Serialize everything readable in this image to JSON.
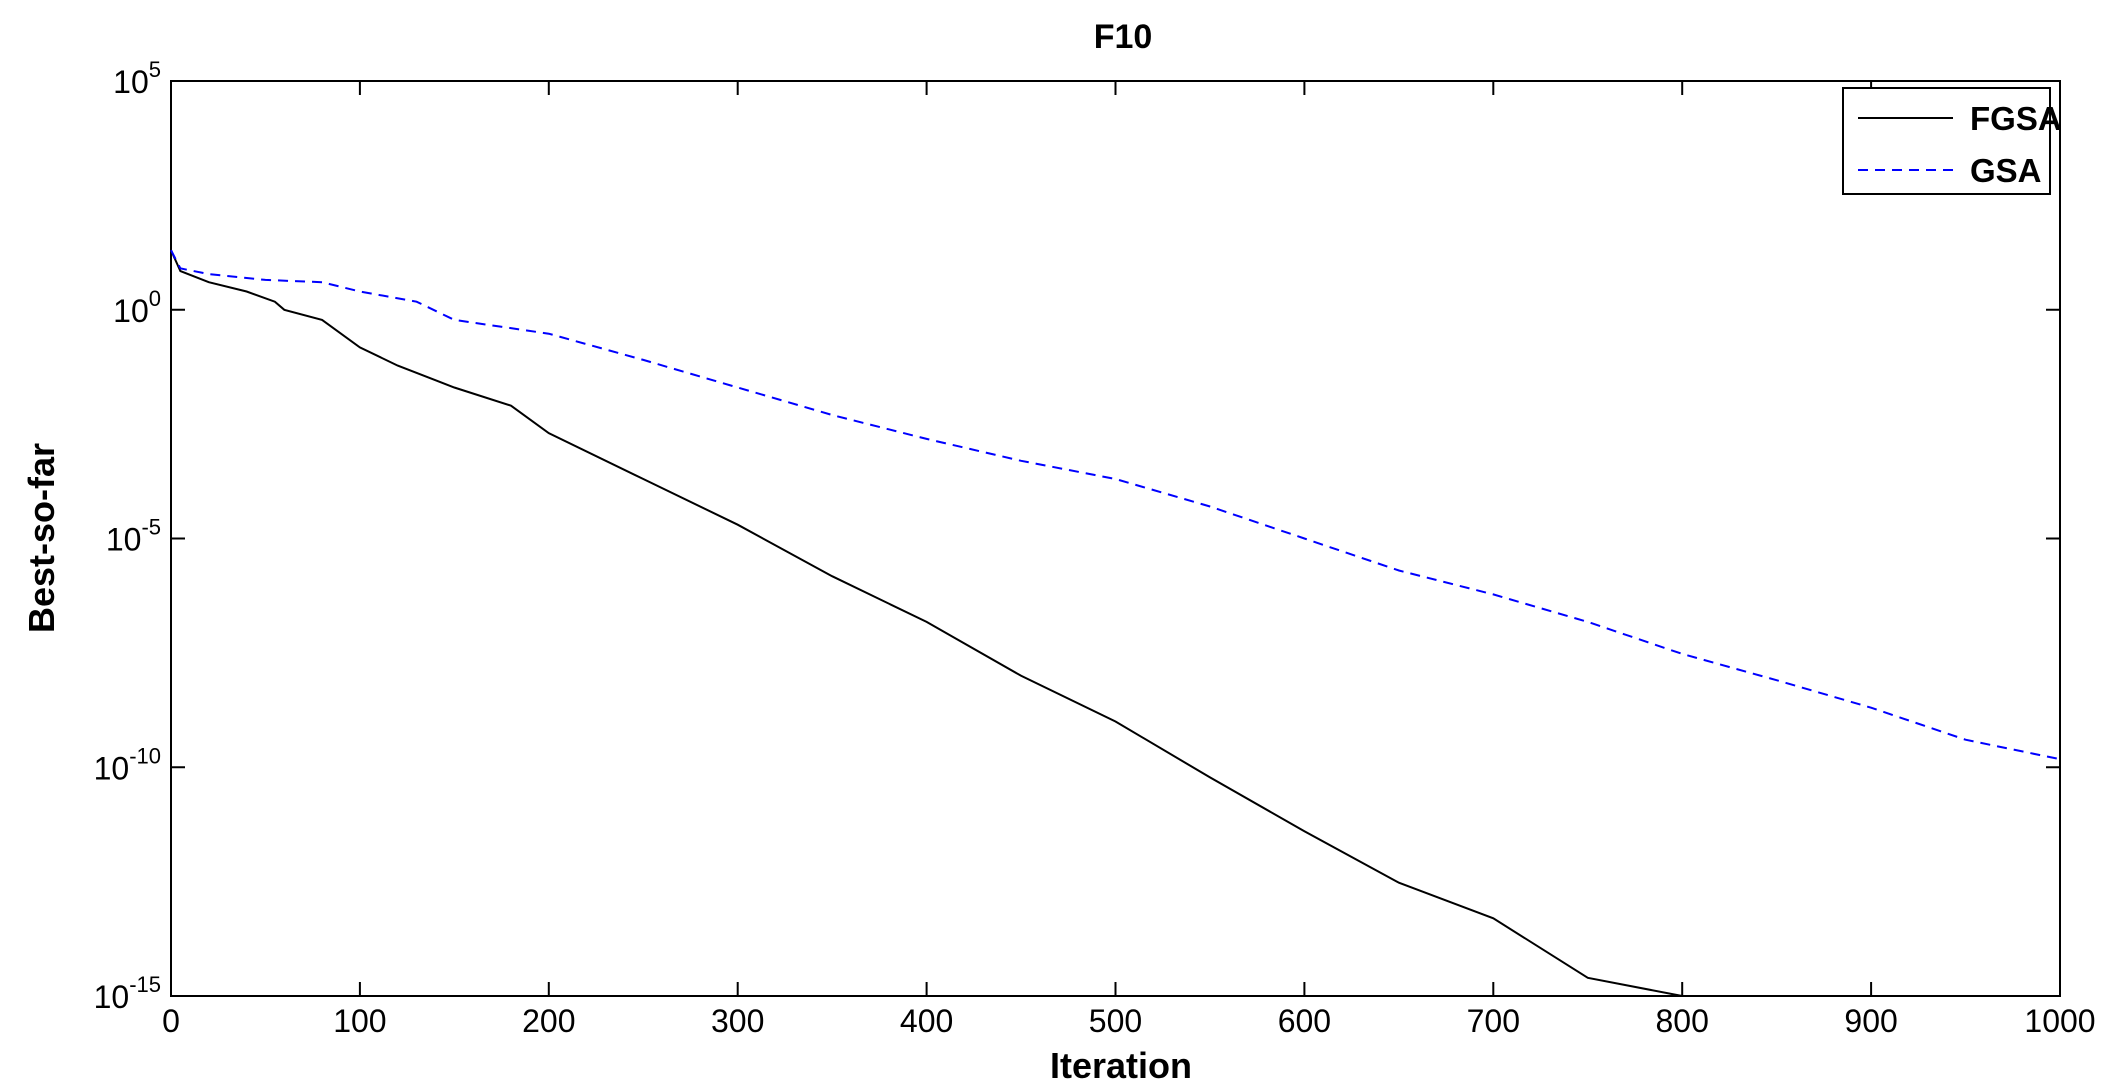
{
  "chart_data": {
    "type": "line",
    "title": "F10",
    "xlabel": "Iteration",
    "ylabel": "Best-so-far",
    "xlim": [
      0,
      1000
    ],
    "ylim": [
      1e-15,
      100000.0
    ],
    "yscale": "log",
    "grid": false,
    "legend_position": "top-right",
    "x_ticks": [
      "0",
      "100",
      "200",
      "300",
      "400",
      "500",
      "600",
      "700",
      "800",
      "900",
      "1000"
    ],
    "y_ticks": [
      {
        "base": "10",
        "exp": "-15"
      },
      {
        "base": "10",
        "exp": "-10"
      },
      {
        "base": "10",
        "exp": "-5"
      },
      {
        "base": "10",
        "exp": "0"
      },
      {
        "base": "10",
        "exp": "5"
      }
    ],
    "series": [
      {
        "name": "FGSA",
        "color": "#000000",
        "style": "solid",
        "x": [
          0,
          5,
          20,
          40,
          55,
          60,
          80,
          100,
          120,
          150,
          180,
          200,
          250,
          300,
          350,
          400,
          450,
          500,
          550,
          600,
          650,
          700,
          750,
          800,
          810,
          850,
          900,
          1000
        ],
        "y": [
          20,
          7,
          4,
          2.5,
          1.5,
          1,
          0.6,
          0.15,
          0.06,
          0.02,
          0.008,
          0.002,
          0.0002,
          2e-05,
          1.5e-06,
          1.5e-07,
          1e-08,
          1e-09,
          6e-11,
          4e-12,
          3e-13,
          5e-14,
          2.5e-15,
          1e-15,
          1e-15,
          1e-15,
          1e-15,
          1e-15
        ]
      },
      {
        "name": "GSA",
        "color": "#0000ff",
        "style": "dashed",
        "x": [
          0,
          5,
          20,
          50,
          80,
          100,
          130,
          150,
          200,
          250,
          300,
          350,
          400,
          450,
          500,
          550,
          600,
          650,
          700,
          750,
          800,
          850,
          900,
          950,
          1000
        ],
        "y": [
          20,
          8,
          6,
          4.5,
          4,
          2.5,
          1.5,
          0.6,
          0.3,
          0.08,
          0.02,
          0.005,
          0.0015,
          0.0005,
          0.0002,
          5e-05,
          1e-05,
          2e-06,
          6e-07,
          1.5e-07,
          3e-08,
          8e-09,
          2e-09,
          4e-10,
          1.5e-10
        ]
      }
    ]
  }
}
